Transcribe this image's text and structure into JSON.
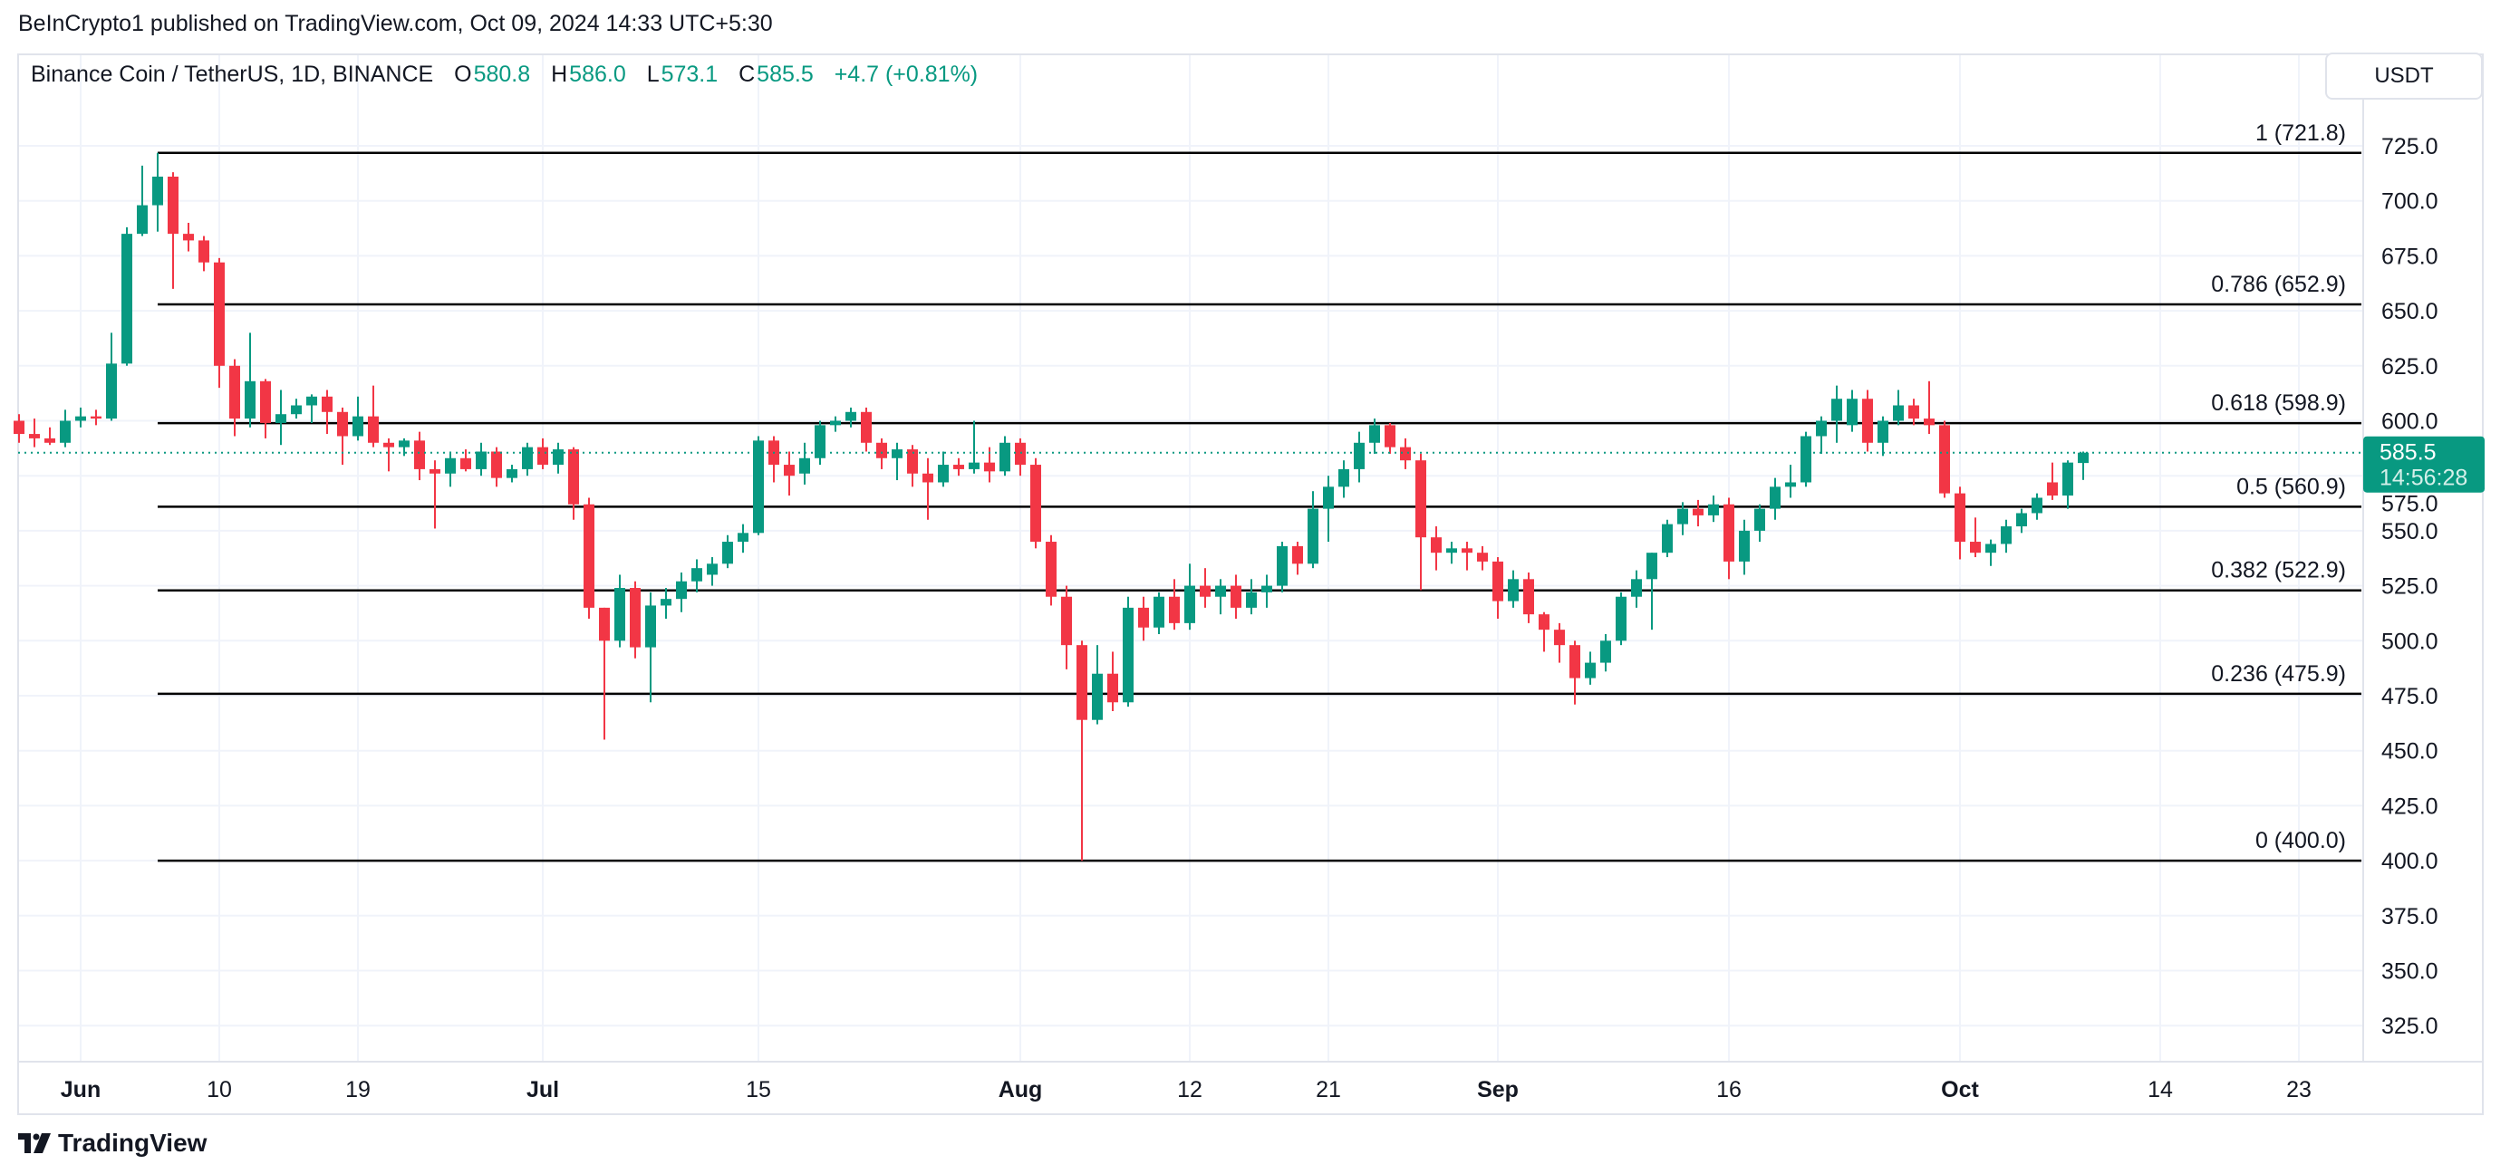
{
  "header": {
    "published": "BeInCrypto1 published on TradingView.com, Oct 09, 2024 14:33 UTC+5:30",
    "symbol": "Binance Coin / TetherUS, 1D, BINANCE",
    "o_label": "O",
    "o_value": "580.8",
    "h_label": "H",
    "h_value": "586.0",
    "l_label": "L",
    "l_value": "573.1",
    "c_label": "C",
    "c_value": "585.5",
    "change": "+4.7 (+0.81%)",
    "currency": "USDT"
  },
  "footer": {
    "brand": "TradingView"
  },
  "colors": {
    "up": "#089981",
    "down": "#f23645",
    "fib": "#000000",
    "grid": "#f0f3fa"
  },
  "chart_data": {
    "type": "candlestick",
    "title": "Binance Coin / TetherUS, 1D, BINANCE",
    "start_date": "2024-05-28",
    "ylim": [
      305,
      740
    ],
    "y_ticks": [
      "725.0",
      "700.0",
      "675.0",
      "650.0",
      "625.0",
      "600.0",
      "575.0",
      "550.0",
      "525.0",
      "500.0",
      "475.0",
      "450.0",
      "425.0",
      "400.0",
      "375.0",
      "350.0",
      "325.0"
    ],
    "x_ticks": [
      {
        "label": "Jun",
        "day": 4,
        "month": true
      },
      {
        "label": "10",
        "day": 13,
        "month": false
      },
      {
        "label": "19",
        "day": 22,
        "month": false
      },
      {
        "label": "Jul",
        "day": 34,
        "month": true
      },
      {
        "label": "15",
        "day": 48,
        "month": false
      },
      {
        "label": "Aug",
        "day": 65,
        "month": true
      },
      {
        "label": "12",
        "day": 76,
        "month": false
      },
      {
        "label": "21",
        "day": 85,
        "month": false
      },
      {
        "label": "Sep",
        "day": 96,
        "month": true
      },
      {
        "label": "16",
        "day": 111,
        "month": false
      },
      {
        "label": "Oct",
        "day": 126,
        "month": true
      },
      {
        "label": "14",
        "day": 139,
        "month": false
      },
      {
        "label": "23",
        "day": 148,
        "month": false
      }
    ],
    "fib_levels": [
      {
        "label": "1 (721.8)",
        "value": 721.8
      },
      {
        "label": "0.786 (652.9)",
        "value": 652.9
      },
      {
        "label": "0.618 (598.9)",
        "value": 598.9
      },
      {
        "label": "0.5 (560.9)",
        "value": 560.9
      },
      {
        "label": "0.382 (522.9)",
        "value": 522.9
      },
      {
        "label": "0.236 (475.9)",
        "value": 475.9
      },
      {
        "label": "0 (400.0)",
        "value": 400.0
      }
    ],
    "last_price": {
      "value": 585.5,
      "label": "585.5",
      "countdown": "14:56:28"
    },
    "ohlc": [
      [
        600,
        603,
        590,
        594
      ],
      [
        594,
        601,
        588,
        592
      ],
      [
        592,
        597,
        589,
        590
      ],
      [
        590,
        605,
        588,
        600
      ],
      [
        600,
        606,
        597,
        602
      ],
      [
        602,
        605,
        598,
        601
      ],
      [
        601,
        640,
        600,
        626
      ],
      [
        626,
        688,
        625,
        685
      ],
      [
        685,
        716,
        684,
        698
      ],
      [
        698,
        721.8,
        686,
        711
      ],
      [
        711,
        713,
        660,
        685
      ],
      [
        685,
        690,
        677,
        682
      ],
      [
        682,
        684,
        668,
        672
      ],
      [
        672,
        674,
        615,
        625
      ],
      [
        625,
        628,
        593,
        601
      ],
      [
        601,
        640,
        597,
        618
      ],
      [
        618,
        619,
        592,
        599
      ],
      [
        599,
        614,
        589,
        603
      ],
      [
        603,
        610,
        601,
        607
      ],
      [
        607,
        612,
        599,
        611
      ],
      [
        611,
        614,
        594,
        604
      ],
      [
        604,
        606,
        580,
        593
      ],
      [
        593,
        611,
        591,
        602
      ],
      [
        602,
        616,
        588,
        590
      ],
      [
        590,
        592,
        577,
        588
      ],
      [
        588,
        592,
        584,
        591
      ],
      [
        591,
        595,
        573,
        578
      ],
      [
        578,
        582,
        551,
        576
      ],
      [
        576,
        586,
        570,
        583
      ],
      [
        583,
        587,
        577,
        578
      ],
      [
        578,
        590,
        575,
        586
      ],
      [
        586,
        588,
        570,
        574
      ],
      [
        574,
        580,
        572,
        578
      ],
      [
        578,
        590,
        575,
        588
      ],
      [
        588,
        592,
        578,
        580
      ],
      [
        580,
        590,
        576,
        587
      ],
      [
        587,
        588,
        555,
        562
      ],
      [
        562,
        565,
        510,
        515
      ],
      [
        515,
        515,
        455,
        500
      ],
      [
        500,
        530,
        497,
        524
      ],
      [
        524,
        527,
        492,
        497
      ],
      [
        497,
        522,
        472,
        516
      ],
      [
        516,
        524,
        510,
        519
      ],
      [
        519,
        531,
        513,
        527
      ],
      [
        527,
        537,
        522,
        533
      ],
      [
        530,
        538,
        525,
        535
      ],
      [
        535,
        548,
        533,
        545
      ],
      [
        545,
        553,
        540,
        549
      ],
      [
        549,
        593,
        548,
        591
      ],
      [
        591,
        593,
        572,
        580
      ],
      [
        580,
        586,
        566,
        575
      ],
      [
        576,
        590,
        571,
        583
      ],
      [
        583,
        600,
        580,
        598
      ],
      [
        598,
        602,
        595,
        600
      ],
      [
        600,
        606,
        597,
        604
      ],
      [
        604,
        606,
        586,
        590
      ],
      [
        590,
        592,
        578,
        583
      ],
      [
        583,
        590,
        573,
        587
      ],
      [
        587,
        589,
        570,
        576
      ],
      [
        576,
        583,
        555,
        572
      ],
      [
        572,
        586,
        570,
        580
      ],
      [
        580,
        583,
        575,
        578
      ],
      [
        578,
        600,
        576,
        581
      ],
      [
        581,
        588,
        572,
        577
      ],
      [
        577,
        593,
        575,
        590
      ],
      [
        590,
        592,
        575,
        580
      ],
      [
        580,
        583,
        542,
        545
      ],
      [
        545,
        548,
        516,
        520
      ],
      [
        520,
        525,
        487,
        498
      ],
      [
        498,
        500,
        400,
        464
      ],
      [
        464,
        498,
        462,
        485
      ],
      [
        485,
        495,
        468,
        472
      ],
      [
        472,
        520,
        470,
        515
      ],
      [
        515,
        520,
        500,
        506
      ],
      [
        506,
        522,
        503,
        520
      ],
      [
        520,
        528,
        505,
        508
      ],
      [
        508,
        535,
        505,
        525
      ],
      [
        525,
        533,
        515,
        520
      ],
      [
        520,
        528,
        512,
        525
      ],
      [
        525,
        530,
        510,
        515
      ],
      [
        515,
        528,
        512,
        522
      ],
      [
        522,
        530,
        515,
        525
      ],
      [
        525,
        545,
        522,
        543
      ],
      [
        543,
        545,
        530,
        535
      ],
      [
        535,
        568,
        533,
        560
      ],
      [
        560,
        575,
        545,
        570
      ],
      [
        570,
        582,
        565,
        578
      ],
      [
        578,
        595,
        572,
        590
      ],
      [
        590,
        601,
        585,
        598
      ],
      [
        598,
        599,
        585,
        588
      ],
      [
        588,
        592,
        578,
        582
      ],
      [
        582,
        585,
        523,
        547
      ],
      [
        547,
        552,
        532,
        540
      ],
      [
        540,
        545,
        535,
        542
      ],
      [
        542,
        545,
        532,
        540
      ],
      [
        540,
        543,
        532,
        536
      ],
      [
        536,
        538,
        510,
        518
      ],
      [
        518,
        532,
        515,
        528
      ],
      [
        528,
        531,
        508,
        512
      ],
      [
        512,
        513,
        495,
        505
      ],
      [
        505,
        508,
        490,
        498
      ],
      [
        498,
        500,
        471,
        483
      ],
      [
        483,
        495,
        480,
        490
      ],
      [
        490,
        503,
        486,
        500
      ],
      [
        500,
        522,
        498,
        520
      ],
      [
        520,
        532,
        515,
        528
      ],
      [
        528,
        540,
        505,
        540
      ],
      [
        540,
        555,
        538,
        553
      ],
      [
        553,
        563,
        548,
        560
      ],
      [
        560,
        564,
        552,
        557
      ],
      [
        557,
        566,
        554,
        562
      ],
      [
        562,
        565,
        528,
        536
      ],
      [
        536,
        555,
        530,
        550
      ],
      [
        550,
        562,
        545,
        560
      ],
      [
        560,
        574,
        555,
        570
      ],
      [
        570,
        580,
        565,
        572
      ],
      [
        572,
        595,
        570,
        593
      ],
      [
        593,
        602,
        585,
        600
      ],
      [
        600,
        616,
        590,
        610
      ],
      [
        598,
        614,
        595,
        610
      ],
      [
        610,
        614,
        586,
        590
      ],
      [
        590,
        602,
        584,
        600
      ],
      [
        600,
        614,
        598,
        607
      ],
      [
        607,
        610,
        598,
        601
      ],
      [
        601,
        618,
        594,
        598
      ],
      [
        598,
        600,
        565,
        567
      ],
      [
        567,
        570,
        537,
        545
      ],
      [
        545,
        556,
        538,
        540
      ],
      [
        540,
        546,
        534,
        544
      ],
      [
        544,
        555,
        540,
        552
      ],
      [
        552,
        560,
        549,
        558
      ],
      [
        558,
        567,
        555,
        565
      ],
      [
        572,
        581,
        564,
        566
      ],
      [
        566,
        582,
        560,
        581
      ],
      [
        580.8,
        586,
        573.1,
        585.5
      ]
    ]
  }
}
